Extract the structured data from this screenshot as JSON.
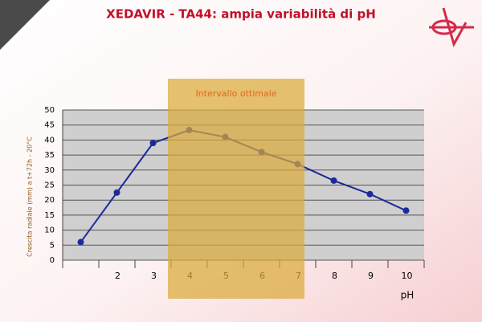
{
  "chart_data": {
    "type": "line",
    "title": "XEDAVIR - TA44: ampia variabilità di pH",
    "y_label": "Crescita radiale (mm) a t+72h - 20°C",
    "x_label": "pH",
    "annotation": "Intervallo ottimale",
    "categories": [
      null,
      "2",
      "3",
      "4",
      "5",
      "6",
      "7",
      "8",
      "9",
      "10"
    ],
    "values": [
      6,
      22.5,
      39,
      43.3,
      41,
      36,
      32,
      26.5,
      22,
      16.5
    ],
    "color": "#1c2a9a",
    "ylim": [
      0,
      50
    ],
    "yticks": [
      0,
      5,
      10,
      15,
      20,
      25,
      30,
      35,
      40,
      45,
      50
    ],
    "grid": true
  }
}
